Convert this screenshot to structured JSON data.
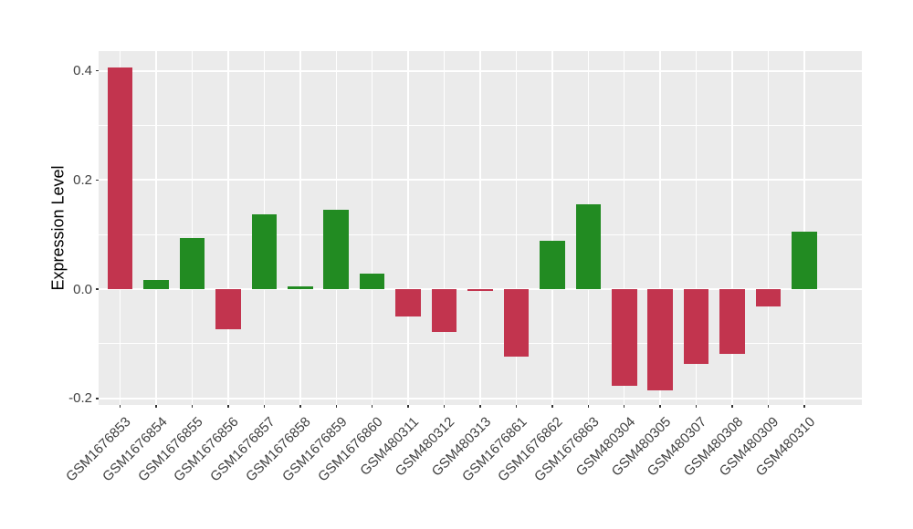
{
  "chart_data": {
    "type": "bar",
    "title": "",
    "xlabel": "",
    "ylabel": "Expression Level",
    "categories": [
      "GSM1676853",
      "GSM1676854",
      "GSM1676855",
      "GSM1676856",
      "GSM1676857",
      "GSM1676858",
      "GSM1676859",
      "GSM1676860",
      "GSM480311",
      "GSM480312",
      "GSM480313",
      "GSM1676861",
      "GSM1676862",
      "GSM1676863",
      "GSM480304",
      "GSM480305",
      "GSM480307",
      "GSM480308",
      "GSM480309",
      "GSM480310"
    ],
    "values": [
      0.406,
      0.016,
      0.094,
      -0.073,
      0.137,
      0.005,
      0.145,
      0.029,
      -0.05,
      -0.079,
      -0.004,
      -0.123,
      0.088,
      0.155,
      -0.177,
      -0.186,
      -0.137,
      -0.119,
      -0.031,
      0.106
    ],
    "bar_colors": [
      "red",
      "green",
      "green",
      "red",
      "green",
      "green",
      "green",
      "green",
      "red",
      "red",
      "red",
      "red",
      "green",
      "green",
      "red",
      "red",
      "red",
      "red",
      "red",
      "green"
    ],
    "palette": {
      "red": "#C2344E",
      "green": "#228B22"
    },
    "yticks": {
      "values": [
        0.4,
        0.2,
        0.0,
        -0.2
      ],
      "labels": [
        "0.4",
        "0.2",
        "0.0",
        "-0.2"
      ]
    },
    "minor_yticks": [
      0.3,
      0.1,
      -0.1
    ],
    "ylim": [
      -0.212,
      0.436
    ],
    "grid": true,
    "legend_position": "none",
    "x_tick_angle": 45,
    "bar_width_fraction": 0.7,
    "panel_bg": "#EBEBEB",
    "grid_color": "#FFFFFF",
    "tick_mark_color": "#333333",
    "tick_label_color": "#404040"
  }
}
